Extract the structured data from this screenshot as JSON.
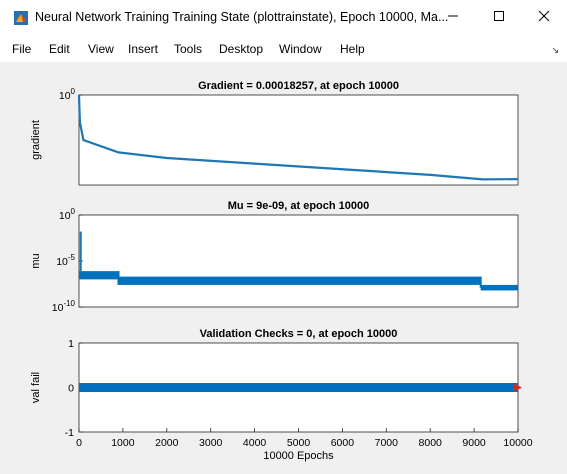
{
  "window": {
    "title": "Neural Network Training Training State (plottrainstate), Epoch 10000, Ma...",
    "minimize_glyph": "—",
    "maximize_glyph": "☐",
    "close_glyph": "✕"
  },
  "menu": {
    "items": [
      "File",
      "Edit",
      "View",
      "Insert",
      "Tools",
      "Desktop",
      "Window",
      "Help"
    ],
    "toolbar_arrow": "↘"
  },
  "colors": {
    "series": "#1f77b4",
    "series_fill": "#0072bd",
    "marker": "#d62728",
    "axes_bg": "#ffffff",
    "figure_bg": "#f0f0f0"
  },
  "chart_data": [
    {
      "type": "line",
      "title": "Gradient = 0.00018257, at epoch 10000",
      "ylabel": "gradient",
      "xlabel": "",
      "yscale": "log",
      "ylim_exp": [
        -4,
        0
      ],
      "xlim": [
        0,
        10000
      ],
      "ytick_labels": [
        {
          "base": "10",
          "exp": "0",
          "value_exp": 0
        }
      ],
      "x": [
        0,
        20,
        100,
        900,
        2000,
        4000,
        6000,
        8000,
        9200,
        10000
      ],
      "y_exp": [
        0.0,
        -1.2,
        -2.0,
        -2.55,
        -2.8,
        -3.05,
        -3.3,
        -3.55,
        -3.75,
        -3.74
      ],
      "grid": false
    },
    {
      "type": "line",
      "title": "Mu = 9e-09, at epoch 10000",
      "ylabel": "mu",
      "xlabel": "",
      "yscale": "log",
      "ylim_exp": [
        -10,
        0
      ],
      "xlim": [
        0,
        10000
      ],
      "ytick_labels": [
        {
          "base": "10",
          "exp": "0",
          "value_exp": 0
        },
        {
          "base": "10",
          "exp": "-5",
          "value_exp": -5
        },
        {
          "base": "10",
          "exp": "-10",
          "value_exp": -10
        }
      ],
      "steps": [
        {
          "x0": 0,
          "x1": 900,
          "y_exp_low": -7.0,
          "y_exp_high": -6.1
        },
        {
          "x0": 900,
          "x1": 9150,
          "y_exp_low": -7.6,
          "y_exp_high": -6.7
        },
        {
          "x0": 9150,
          "x1": 10000,
          "y_exp_low": -8.2,
          "y_exp_high": -7.6
        }
      ],
      "spike": {
        "x": 40,
        "y_exp_top": -1.8
      },
      "grid": false
    },
    {
      "type": "line",
      "title": "Validation Checks = 0, at epoch 10000",
      "ylabel": "val fail",
      "xlabel": "10000 Epochs",
      "ylim": [
        -1,
        1
      ],
      "xlim": [
        0,
        10000
      ],
      "yticks": [
        "1",
        "0",
        "-1"
      ],
      "ytick_values": [
        1,
        0,
        -1
      ],
      "xticks": [
        "0",
        "1000",
        "2000",
        "3000",
        "4000",
        "5000",
        "6000",
        "7000",
        "8000",
        "9000",
        "10000"
      ],
      "xtick_values": [
        0,
        1000,
        2000,
        3000,
        4000,
        5000,
        6000,
        7000,
        8000,
        9000,
        10000
      ],
      "x": [
        0,
        10000
      ],
      "y": [
        0,
        0
      ],
      "end_marker": {
        "x": 10000,
        "y": 0
      },
      "grid": false
    }
  ]
}
